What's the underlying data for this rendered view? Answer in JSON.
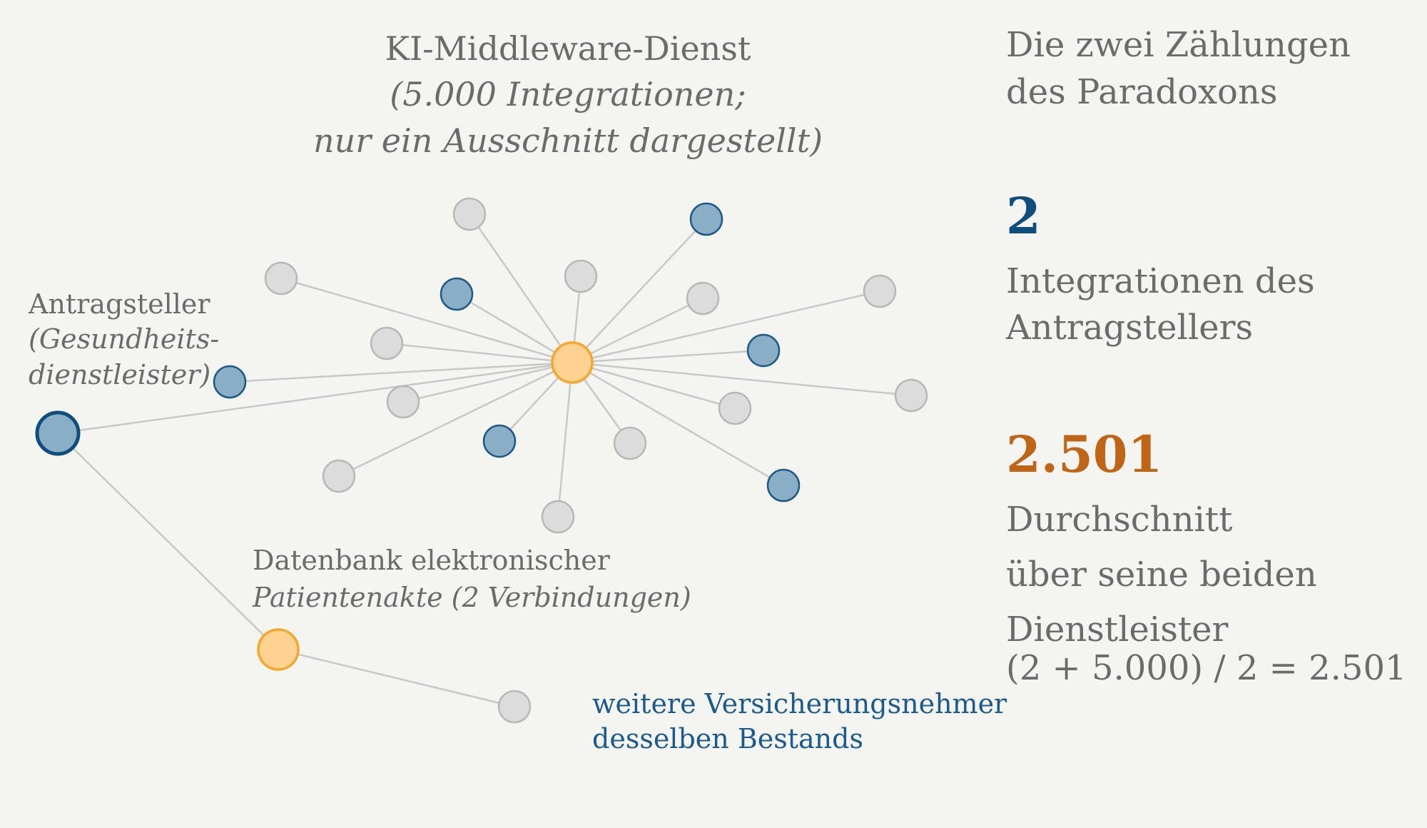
{
  "hub_title": {
    "line1": "KI-Middleware-Dienst",
    "line2": "(5.000 Integrationen;",
    "line3": "nur ein Ausschnitt dargestellt)"
  },
  "applicant_label": {
    "line1": "Antragsteller",
    "line2": "(Gesundheits-",
    "line3": "dienstleister)"
  },
  "ehr_label": {
    "line1": "Datenbank elektronischer",
    "line2": "Patientenakte (2 Verbindungen)"
  },
  "more_label": {
    "line1": "weitere Versicherungsnehmer",
    "line2": "desselben Bestands"
  },
  "side": {
    "title_line1": "Die zwei Zählungen",
    "title_line2": "des Paradoxons",
    "count_value": "2",
    "count_desc_line1": "Integrationen des",
    "count_desc_line2": "Antragstellers",
    "avg_value": "2.501",
    "avg_desc_line1": "Durchschnitt",
    "avg_desc_line2": "über seine beiden",
    "avg_desc_line3": "Dienstleister",
    "formula": "(2 + 5.000) / 2 = 2.501"
  },
  "colors": {
    "accent_blue": "#0f4d7c",
    "accent_orange": "#bf6517",
    "hub_fill": "#ffd291",
    "hub_stroke": "#f2a730",
    "node_blue_fill": "#8aaec6",
    "node_grey_fill": "#dcdcdc",
    "edge": "#c8c8c8",
    "background": "#f4f4f1"
  }
}
